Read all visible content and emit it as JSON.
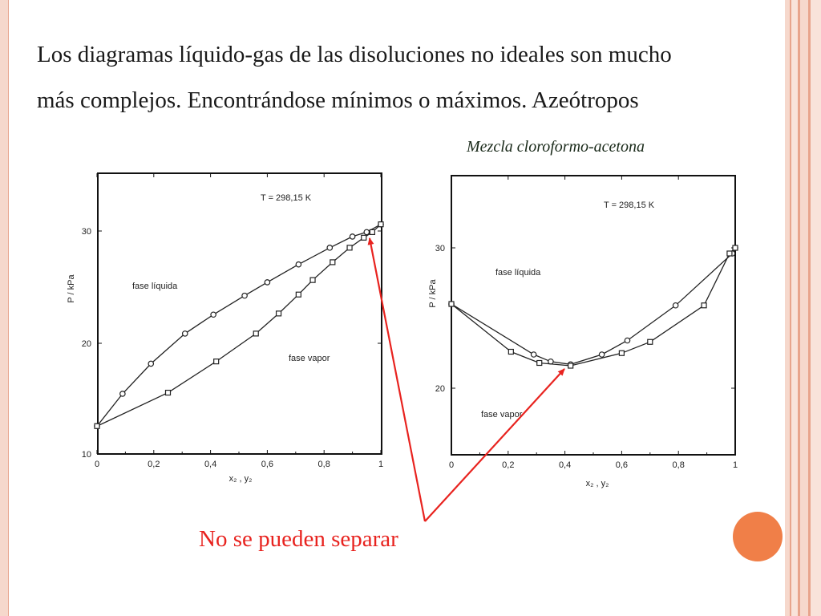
{
  "title": {
    "line1": "Los diagramas líquido-gas de las disoluciones no ideales son mucho",
    "line2": "más complejos. Encontrándose mínimos o máximos. Azeótropos"
  },
  "subtitle": "Mezcla cloroformo-acetona",
  "callout": "No se pueden separar",
  "colors": {
    "callout": "#e8231f",
    "accent_circle": "#f07f48",
    "edge_light": "#f6d8cc",
    "edge_dark": "#e8a48c"
  },
  "chart_data": [
    {
      "type": "line",
      "title": "",
      "annotation_temp": "T = 298,15 K",
      "region_labels": {
        "liquid": "fase líquida",
        "vapor": "fase vapor"
      },
      "xlabel": "x₂ , y₂",
      "ylabel": "P / kPa",
      "xlim": [
        0,
        1
      ],
      "ylim": [
        10,
        33
      ],
      "xticks": [
        "0",
        "0,2",
        "0,4",
        "0,6",
        "0,8",
        "1"
      ],
      "yticks": [
        "10",
        "20",
        "30"
      ],
      "grid": false,
      "series": [
        {
          "marker": "circle",
          "x": [
            0,
            0.09,
            0.19,
            0.31,
            0.41,
            0.52,
            0.6,
            0.71,
            0.82,
            0.9,
            0.95,
            1
          ],
          "y": [
            12.5,
            15.4,
            18.1,
            20.8,
            22.5,
            24.2,
            25.4,
            27.0,
            28.5,
            29.5,
            29.9,
            30.6
          ]
        },
        {
          "marker": "square",
          "x": [
            0,
            0.25,
            0.42,
            0.56,
            0.64,
            0.71,
            0.76,
            0.83,
            0.89,
            0.94,
            0.97,
            1
          ],
          "y": [
            12.5,
            15.5,
            18.3,
            20.8,
            22.6,
            24.3,
            25.6,
            27.2,
            28.5,
            29.4,
            29.9,
            30.6
          ]
        }
      ]
    },
    {
      "type": "line",
      "title": "",
      "annotation_temp": "T = 298,15 K",
      "region_labels": {
        "liquid": "fase líquida",
        "vapor": "fase vapor"
      },
      "xlabel": "x₂ , y₂",
      "ylabel": "P / kPa",
      "xlim": [
        0,
        1
      ],
      "ylim": [
        16,
        34
      ],
      "xticks": [
        "0",
        "0,2",
        "0,4",
        "0,6",
        "0,8",
        "1"
      ],
      "yticks": [
        "20",
        "30"
      ],
      "grid": false,
      "series": [
        {
          "marker": "circle",
          "x": [
            0,
            0.29,
            0.35,
            0.42,
            0.53,
            0.62,
            0.79,
            0.99,
            1
          ],
          "y": [
            26.0,
            22.4,
            21.9,
            21.7,
            22.4,
            23.4,
            25.9,
            29.6,
            30.0
          ]
        },
        {
          "marker": "square",
          "x": [
            0,
            0.21,
            0.31,
            0.42,
            0.6,
            0.7,
            0.89,
            0.98,
            1
          ],
          "y": [
            26.0,
            22.6,
            21.8,
            21.6,
            22.5,
            23.3,
            25.9,
            29.6,
            30.0
          ]
        }
      ]
    }
  ]
}
